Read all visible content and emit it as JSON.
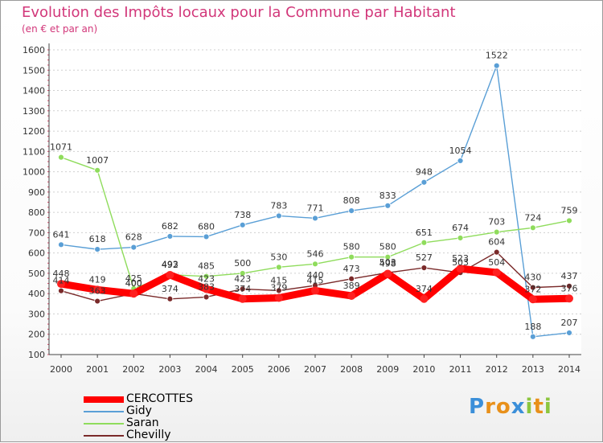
{
  "chart_data": {
    "type": "line",
    "title": "Evolution des Impôts locaux pour la Commune par Habitant",
    "subtitle": "(en € et par an)",
    "xlabel": "",
    "ylabel": "",
    "ylim": [
      100,
      1600
    ],
    "yticks": [
      100,
      200,
      300,
      400,
      500,
      600,
      700,
      800,
      900,
      1000,
      1100,
      1200,
      1300,
      1400,
      1500,
      1600
    ],
    "x": [
      "2000",
      "2001",
      "2002",
      "2003",
      "2004",
      "2005",
      "2006",
      "2007",
      "2008",
      "2009",
      "2010",
      "2011",
      "2012",
      "2013",
      "2014"
    ],
    "grid": "horizontal",
    "legend": "bottom-left",
    "series": [
      {
        "name": "CERCOTTES",
        "color": "#ff0000",
        "values": [
          448,
          419,
          400,
          492,
          423,
          374,
          379,
          415,
          389,
          498,
          374,
          523,
          504,
          372,
          376
        ],
        "labels": [
          "448",
          "419",
          "400",
          "492",
          "423",
          "374",
          "379",
          "415",
          "389",
          "498",
          "374",
          "523",
          "504",
          "372",
          "376"
        ]
      },
      {
        "name": "Gidy",
        "color": "#5a9fd6",
        "values": [
          641,
          618,
          628,
          682,
          680,
          738,
          783,
          771,
          808,
          833,
          948,
          1054,
          1522,
          188,
          207
        ],
        "labels": [
          "641",
          "618",
          "628",
          "682",
          "680",
          "738",
          "783",
          "771",
          "808",
          "833",
          "948",
          "1054",
          "1522",
          "188",
          "207"
        ]
      },
      {
        "name": "Saran",
        "color": "#8fdc5c",
        "values": [
          1071,
          1007,
          425,
          493,
          485,
          500,
          530,
          546,
          580,
          580,
          651,
          674,
          703,
          724,
          759
        ],
        "labels": [
          "1071",
          "1007",
          "425",
          "493",
          "485",
          "500",
          "530",
          "546",
          "580",
          "580",
          "651",
          "674",
          "703",
          "724",
          "759"
        ]
      },
      {
        "name": "Chevilly",
        "color": "#7a2a2a",
        "values": [
          414,
          363,
          400,
          374,
          383,
          423,
          415,
          440,
          473,
          503,
          527,
          503,
          604,
          430,
          437
        ],
        "labels": [
          "414",
          "363",
          "400",
          "374",
          "383",
          "423",
          "415",
          "440",
          "473",
          "503",
          "527",
          "503",
          "604",
          "430",
          "437"
        ]
      }
    ]
  }
}
